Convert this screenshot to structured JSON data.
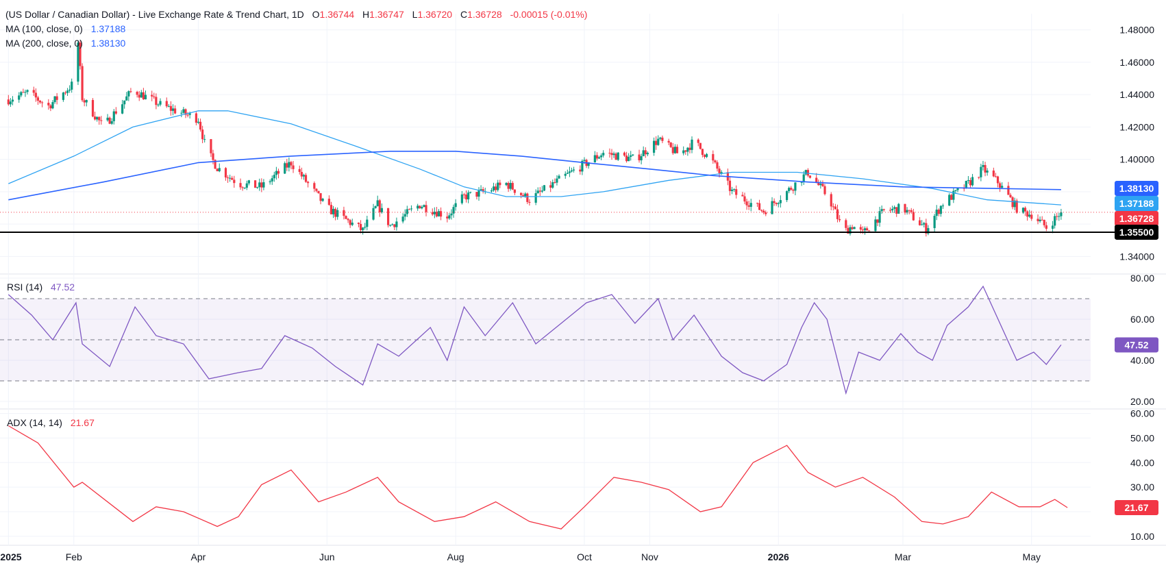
{
  "header": {
    "title": "(US Dollar / Canadian Dollar) - Live Exchange Rate & Trend Chart, 1D",
    "o_label": "O",
    "o_value": "1.36744",
    "h_label": "H",
    "h_value": "1.36747",
    "l_label": "L",
    "l_value": "1.36720",
    "c_label": "C",
    "c_value": "1.36728",
    "change": "-0.00015 (-0.01%)"
  },
  "legends": {
    "ma100": {
      "label": "MA (100, close, 0)",
      "value": "1.37188"
    },
    "ma200": {
      "label": "MA (200, close, 0)",
      "value": "1.38130"
    },
    "rsi": {
      "label": "RSI (14)",
      "value": "47.52"
    },
    "adx": {
      "label": "ADX (14, 14)",
      "value": "21.67"
    }
  },
  "colors": {
    "up": "#089981",
    "down": "#f23645",
    "ma100": "#2ea3f2",
    "ma200": "#2962ff",
    "rsi": "#7e57c2",
    "adx": "#f23645",
    "support": "#000000",
    "grid": "#f0f3fa",
    "text": "#131722"
  },
  "badges": {
    "ma200": {
      "text": "1.38130",
      "color": "#2962ff"
    },
    "ma100": {
      "text": "1.37188",
      "color": "#2ea3f2"
    },
    "price": {
      "text": "1.36728",
      "color": "#f23645"
    },
    "support": {
      "text": "1.35500",
      "color": "#000000"
    },
    "rsi": {
      "text": "47.52",
      "color": "#7e57c2"
    },
    "adx": {
      "text": "21.67",
      "color": "#f23645"
    }
  },
  "chart_data": [
    {
      "type": "candlestick",
      "title": "(US Dollar / Canadian Dollar) - Live Exchange Rate & Trend Chart, 1D",
      "ylim": [
        1.33,
        1.49
      ],
      "y_ticks": [
        "1.48000",
        "1.46000",
        "1.44000",
        "1.42000",
        "1.40000",
        "1.38000",
        "1.36000",
        "1.34000"
      ],
      "x_ticks": [
        "2025",
        "Feb",
        "Apr",
        "Jun",
        "Aug",
        "Oct",
        "Nov",
        "2026",
        "Mar",
        "May"
      ],
      "price_path": [
        [
          "2025-01-01",
          1.437
        ],
        [
          "2025-01-10",
          1.441
        ],
        [
          "2025-01-20",
          1.433
        ],
        [
          "2025-02-01",
          1.447
        ],
        [
          "2025-02-03",
          1.472
        ],
        [
          "2025-02-05",
          1.438
        ],
        [
          "2025-02-15",
          1.42
        ],
        [
          "2025-03-01",
          1.443
        ],
        [
          "2025-03-15",
          1.433
        ],
        [
          "2025-04-01",
          1.425
        ],
        [
          "2025-04-05",
          1.405
        ],
        [
          "2025-04-10",
          1.395
        ],
        [
          "2025-04-20",
          1.385
        ],
        [
          "2025-05-01",
          1.383
        ],
        [
          "2025-05-15",
          1.398
        ],
        [
          "2025-06-01",
          1.37
        ],
        [
          "2025-06-18",
          1.356
        ],
        [
          "2025-06-25",
          1.372
        ],
        [
          "2025-07-01",
          1.359
        ],
        [
          "2025-07-15",
          1.372
        ],
        [
          "2025-07-28",
          1.365
        ],
        [
          "2025-08-05",
          1.377
        ],
        [
          "2025-08-15",
          1.38
        ],
        [
          "2025-08-25",
          1.385
        ],
        [
          "2025-09-05",
          1.375
        ],
        [
          "2025-09-20",
          1.388
        ],
        [
          "2025-10-01",
          1.397
        ],
        [
          "2025-10-10",
          1.404
        ],
        [
          "2025-10-25",
          1.4
        ],
        [
          "2025-11-05",
          1.412
        ],
        [
          "2025-11-15",
          1.403
        ],
        [
          "2025-11-22",
          1.411
        ],
        [
          "2025-12-01",
          1.398
        ],
        [
          "2025-12-10",
          1.38
        ],
        [
          "2025-12-25",
          1.368
        ],
        [
          "2026-01-05",
          1.38
        ],
        [
          "2026-01-15",
          1.392
        ],
        [
          "2026-01-25",
          1.376
        ],
        [
          "2026-02-01",
          1.355
        ],
        [
          "2026-02-05",
          1.359
        ],
        [
          "2026-02-10",
          1.354
        ],
        [
          "2026-02-20",
          1.368
        ],
        [
          "2026-03-01",
          1.37
        ],
        [
          "2026-03-12",
          1.357
        ],
        [
          "2026-03-20",
          1.373
        ],
        [
          "2026-04-01",
          1.385
        ],
        [
          "2026-04-08",
          1.394
        ],
        [
          "2026-04-15",
          1.386
        ],
        [
          "2026-04-25",
          1.368
        ],
        [
          "2026-05-01",
          1.366
        ],
        [
          "2026-05-08",
          1.358
        ],
        [
          "2026-05-15",
          1.36728
        ]
      ],
      "series": [
        {
          "name": "MA (100, close, 0)",
          "points": [
            [
              "2025-01-01",
              1.385
            ],
            [
              "2025-02-01",
              1.402
            ],
            [
              "2025-03-01",
              1.42
            ],
            [
              "2025-04-01",
              1.43
            ],
            [
              "2025-04-15",
              1.43
            ],
            [
              "2025-05-15",
              1.422
            ],
            [
              "2025-06-15",
              1.408
            ],
            [
              "2025-07-15",
              1.394
            ],
            [
              "2025-08-05",
              1.383
            ],
            [
              "2025-08-25",
              1.377
            ],
            [
              "2025-09-20",
              1.377
            ],
            [
              "2025-10-10",
              1.38
            ],
            [
              "2025-11-10",
              1.387
            ],
            [
              "2025-12-10",
              1.392
            ],
            [
              "2026-01-10",
              1.392
            ],
            [
              "2026-02-10",
              1.388
            ],
            [
              "2026-03-15",
              1.382
            ],
            [
              "2026-04-10",
              1.375
            ],
            [
              "2026-05-15",
              1.37188
            ]
          ]
        },
        {
          "name": "MA (200, close, 0)",
          "points": [
            [
              "2025-01-01",
              1.375
            ],
            [
              "2025-02-15",
              1.386
            ],
            [
              "2025-04-01",
              1.398
            ],
            [
              "2025-05-15",
              1.402
            ],
            [
              "2025-07-01",
              1.405
            ],
            [
              "2025-08-01",
              1.405
            ],
            [
              "2025-09-01",
              1.402
            ],
            [
              "2025-10-01",
              1.398
            ],
            [
              "2025-11-01",
              1.394
            ],
            [
              "2025-12-01",
              1.39
            ],
            [
              "2026-01-15",
              1.386
            ],
            [
              "2026-03-01",
              1.383
            ],
            [
              "2026-04-15",
              1.382
            ],
            [
              "2026-05-15",
              1.3813
            ]
          ]
        }
      ],
      "support_level": 1.355,
      "last_close": 1.36728
    },
    {
      "type": "line",
      "title": "RSI (14)",
      "ylim": [
        17,
        81
      ],
      "y_ticks": [
        "80.00",
        "60.00",
        "40.00",
        "20.00"
      ],
      "bands": [
        70,
        50,
        30
      ],
      "series": [
        {
          "name": "RSI (14)",
          "points": [
            [
              "2025-01-01",
              72
            ],
            [
              "2025-01-12",
              62
            ],
            [
              "2025-01-22",
              50
            ],
            [
              "2025-02-02",
              68
            ],
            [
              "2025-02-05",
              48
            ],
            [
              "2025-02-18",
              37
            ],
            [
              "2025-03-02",
              66
            ],
            [
              "2025-03-12",
              52
            ],
            [
              "2025-03-25",
              48
            ],
            [
              "2025-04-06",
              31
            ],
            [
              "2025-04-20",
              34
            ],
            [
              "2025-05-01",
              36
            ],
            [
              "2025-05-12",
              52
            ],
            [
              "2025-05-25",
              46
            ],
            [
              "2025-06-05",
              37
            ],
            [
              "2025-06-18",
              28
            ],
            [
              "2025-06-25",
              48
            ],
            [
              "2025-07-05",
              42
            ],
            [
              "2025-07-20",
              56
            ],
            [
              "2025-07-28",
              40
            ],
            [
              "2025-08-05",
              66
            ],
            [
              "2025-08-15",
              52
            ],
            [
              "2025-08-28",
              68
            ],
            [
              "2025-09-08",
              48
            ],
            [
              "2025-09-20",
              58
            ],
            [
              "2025-10-02",
              68
            ],
            [
              "2025-10-14",
              72
            ],
            [
              "2025-10-25",
              58
            ],
            [
              "2025-11-05",
              70
            ],
            [
              "2025-11-12",
              50
            ],
            [
              "2025-11-22",
              62
            ],
            [
              "2025-12-05",
              42
            ],
            [
              "2025-12-15",
              34
            ],
            [
              "2025-12-25",
              30
            ],
            [
              "2026-01-05",
              38
            ],
            [
              "2026-01-12",
              56
            ],
            [
              "2026-01-18",
              68
            ],
            [
              "2026-01-24",
              60
            ],
            [
              "2026-02-02",
              24
            ],
            [
              "2026-02-08",
              44
            ],
            [
              "2026-02-18",
              40
            ],
            [
              "2026-02-28",
              53
            ],
            [
              "2026-03-08",
              44
            ],
            [
              "2026-03-15",
              40
            ],
            [
              "2026-03-22",
              57
            ],
            [
              "2026-04-01",
              66
            ],
            [
              "2026-04-08",
              76
            ],
            [
              "2026-04-16",
              58
            ],
            [
              "2026-04-24",
              40
            ],
            [
              "2026-05-02",
              44
            ],
            [
              "2026-05-08",
              38
            ],
            [
              "2026-05-15",
              47.52
            ]
          ]
        }
      ]
    },
    {
      "type": "line",
      "title": "ADX (14, 14)",
      "ylim": [
        8,
        61
      ],
      "y_ticks": [
        "60.00",
        "50.00",
        "40.00",
        "30.00",
        "20.00",
        "10.00"
      ],
      "series": [
        {
          "name": "ADX (14, 14)",
          "points": [
            [
              "2025-01-01",
              55
            ],
            [
              "2025-01-15",
              48
            ],
            [
              "2025-02-01",
              30
            ],
            [
              "2025-02-05",
              32
            ],
            [
              "2025-02-20",
              22
            ],
            [
              "2025-03-01",
              16
            ],
            [
              "2025-03-12",
              22
            ],
            [
              "2025-03-25",
              20
            ],
            [
              "2025-04-10",
              14
            ],
            [
              "2025-04-20",
              18
            ],
            [
              "2025-05-01",
              31
            ],
            [
              "2025-05-15",
              37
            ],
            [
              "2025-05-28",
              24
            ],
            [
              "2025-06-10",
              28
            ],
            [
              "2025-06-25",
              34
            ],
            [
              "2025-07-05",
              24
            ],
            [
              "2025-07-22",
              16
            ],
            [
              "2025-08-05",
              18
            ],
            [
              "2025-08-20",
              24
            ],
            [
              "2025-09-05",
              16
            ],
            [
              "2025-09-20",
              13
            ],
            [
              "2025-10-01",
              22
            ],
            [
              "2025-10-15",
              34
            ],
            [
              "2025-10-28",
              32
            ],
            [
              "2025-11-10",
              29
            ],
            [
              "2025-11-25",
              20
            ],
            [
              "2025-12-05",
              22
            ],
            [
              "2025-12-20",
              40
            ],
            [
              "2026-01-05",
              47
            ],
            [
              "2026-01-15",
              36
            ],
            [
              "2026-01-28",
              30
            ],
            [
              "2026-02-10",
              34
            ],
            [
              "2026-02-25",
              26
            ],
            [
              "2026-03-10",
              16
            ],
            [
              "2026-03-20",
              15
            ],
            [
              "2026-04-01",
              18
            ],
            [
              "2026-04-12",
              28
            ],
            [
              "2026-04-25",
              22
            ],
            [
              "2026-05-05",
              22
            ],
            [
              "2026-05-12",
              25
            ],
            [
              "2026-05-18",
              21.67
            ]
          ]
        }
      ]
    }
  ]
}
